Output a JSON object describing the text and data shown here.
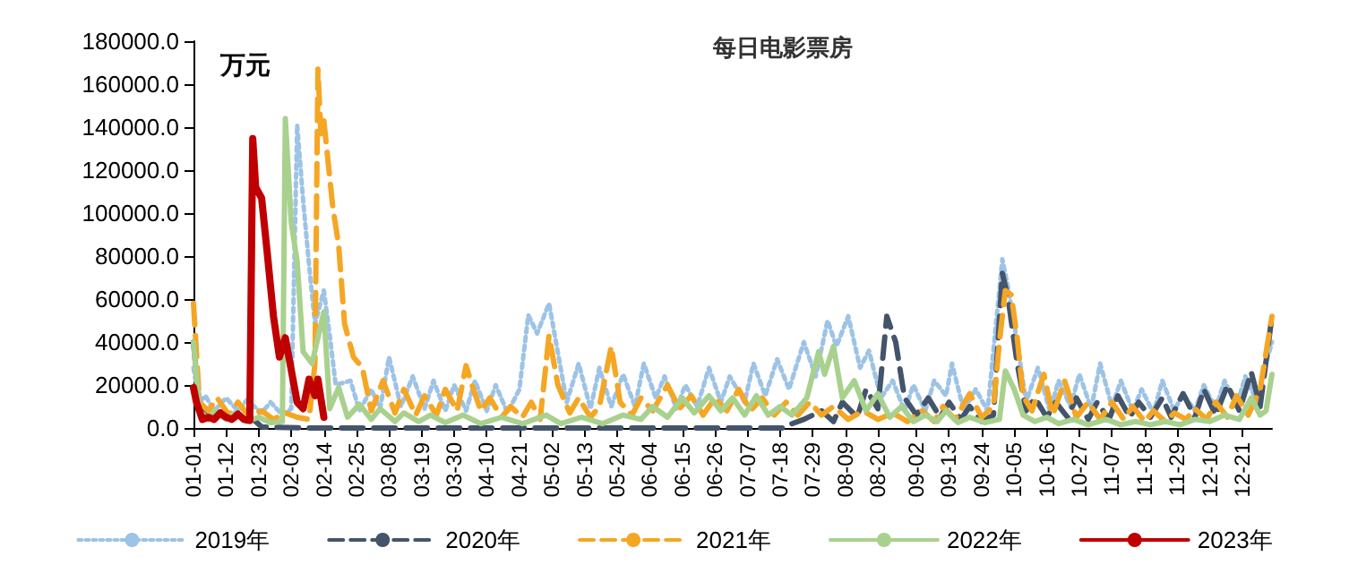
{
  "chart_data": {
    "type": "line",
    "title": "每日电影票房",
    "ylabel": "万元",
    "xlim": [
      "--01-01",
      "--12-31"
    ],
    "xticks": [
      {
        "value": "--01-01",
        "label": "01-01"
      },
      {
        "value": "--01-12",
        "label": "01-12"
      },
      {
        "value": "--01-23",
        "label": "01-23"
      },
      {
        "value": "--02-03",
        "label": "02-03"
      },
      {
        "value": "--02-14",
        "label": "02-14"
      },
      {
        "value": "--02-25",
        "label": "02-25"
      },
      {
        "value": "--03-08",
        "label": "03-08"
      },
      {
        "value": "--03-19",
        "label": "03-19"
      },
      {
        "value": "--03-30",
        "label": "03-30"
      },
      {
        "value": "--04-10",
        "label": "04-10"
      },
      {
        "value": "--04-21",
        "label": "04-21"
      },
      {
        "value": "--05-02",
        "label": "05-02"
      },
      {
        "value": "--05-13",
        "label": "05-13"
      },
      {
        "value": "--05-24",
        "label": "05-24"
      },
      {
        "value": "--06-04",
        "label": "06-04"
      },
      {
        "value": "--06-15",
        "label": "06-15"
      },
      {
        "value": "--06-26",
        "label": "06-26"
      },
      {
        "value": "--07-07",
        "label": "07-07"
      },
      {
        "value": "--07-18",
        "label": "07-18"
      },
      {
        "value": "--07-29",
        "label": "07-29"
      },
      {
        "value": "--08-09",
        "label": "08-09"
      },
      {
        "value": "--08-20",
        "label": "08-20"
      },
      {
        "value": "--09-02",
        "label": "09-02"
      },
      {
        "value": "--09-13",
        "label": "09-13"
      },
      {
        "value": "--09-24",
        "label": "09-24"
      },
      {
        "value": "--10-05",
        "label": "10-05"
      },
      {
        "value": "--10-16",
        "label": "10-16"
      },
      {
        "value": "--10-27",
        "label": "10-27"
      },
      {
        "value": "--11-07",
        "label": "11-07"
      },
      {
        "value": "--11-18",
        "label": "11-18"
      },
      {
        "value": "--11-29",
        "label": "11-29"
      },
      {
        "value": "--12-10",
        "label": "12-10"
      },
      {
        "value": "--12-21",
        "label": "12-21"
      }
    ],
    "ylim": [
      0,
      180000
    ],
    "yticks": [
      {
        "value": 0,
        "label": "0.0"
      },
      {
        "value": 20000,
        "label": "20000.0"
      },
      {
        "value": 40000,
        "label": "40000.0"
      },
      {
        "value": 60000,
        "label": "60000.0"
      },
      {
        "value": 80000,
        "label": "80000.0"
      },
      {
        "value": 100000,
        "label": "100000.0"
      },
      {
        "value": 120000,
        "label": "120000.0"
      },
      {
        "value": 140000,
        "label": "140000.0"
      },
      {
        "value": 160000,
        "label": "160000.0"
      },
      {
        "value": 180000,
        "label": "180000.0"
      }
    ],
    "grid": false,
    "legend": "bottom",
    "marker": "none",
    "series": [
      {
        "name": "2019年",
        "color": "#9dc3e6",
        "line_style": "dotted",
        "x": [
          "--01-01",
          "--01-03",
          "--01-05",
          "--01-08",
          "--01-12",
          "--01-16",
          "--01-19",
          "--01-24",
          "--01-27",
          "--01-31",
          "--02-03",
          "--02-05",
          "--02-07",
          "--02-09",
          "--02-11",
          "--02-14",
          "--02-16",
          "--02-18",
          "--02-23",
          "--02-26",
          "--03-02",
          "--03-05",
          "--03-08",
          "--03-12",
          "--03-16",
          "--03-20",
          "--03-23",
          "--03-27",
          "--03-30",
          "--04-03",
          "--04-06",
          "--04-10",
          "--04-13",
          "--04-17",
          "--04-21",
          "--04-24",
          "--04-27",
          "--05-01",
          "--05-04",
          "--05-07",
          "--05-11",
          "--05-15",
          "--05-18",
          "--05-22",
          "--05-26",
          "--05-30",
          "--06-02",
          "--06-06",
          "--06-09",
          "--06-13",
          "--06-16",
          "--06-20",
          "--06-24",
          "--06-28",
          "--07-01",
          "--07-06",
          "--07-09",
          "--07-13",
          "--07-17",
          "--07-21",
          "--07-26",
          "--07-30",
          "--08-03",
          "--08-06",
          "--08-10",
          "--08-14",
          "--08-17",
          "--08-21",
          "--08-25",
          "--08-29",
          "--09-01",
          "--09-05",
          "--09-08",
          "--09-12",
          "--09-14",
          "--09-18",
          "--09-22",
          "--09-26",
          "--10-01",
          "--10-03",
          "--10-06",
          "--10-09",
          "--10-13",
          "--10-17",
          "--10-20",
          "--10-24",
          "--10-27",
          "--10-31",
          "--11-03",
          "--11-07",
          "--11-10",
          "--11-14",
          "--11-17",
          "--11-21",
          "--11-24",
          "--11-28",
          "--12-01",
          "--12-05",
          "--12-08",
          "--12-12",
          "--12-15",
          "--12-19",
          "--12-22",
          "--12-26",
          "--12-29",
          "--12-31"
        ],
        "values": [
          28000,
          12000,
          15000,
          8000,
          14000,
          8000,
          13000,
          7000,
          12000,
          6000,
          9000,
          141000,
          106000,
          76000,
          48500,
          64000,
          43000,
          20000,
          22000,
          8000,
          18000,
          9000,
          33000,
          10000,
          24000,
          9000,
          22000,
          8000,
          20000,
          8000,
          22000,
          8000,
          20000,
          7000,
          18000,
          52500,
          44000,
          58000,
          35000,
          12000,
          30000,
          9000,
          28000,
          10000,
          25000,
          10000,
          30000,
          14000,
          24000,
          9000,
          20000,
          10000,
          28000,
          12000,
          24000,
          12000,
          30000,
          15000,
          32000,
          18000,
          40000,
          24000,
          50000,
          38000,
          52000,
          28000,
          36000,
          14000,
          22000,
          8000,
          20000,
          8000,
          22000,
          15000,
          30000,
          8000,
          18000,
          8000,
          78500,
          65000,
          40000,
          12000,
          28000,
          8000,
          22000,
          10000,
          25000,
          9000,
          30000,
          10000,
          22000,
          8000,
          18000,
          7000,
          22000,
          8000,
          16000,
          8000,
          20000,
          9000,
          22000,
          10000,
          24000,
          12000,
          30000,
          40000
        ]
      },
      {
        "name": "2020年",
        "color": "#44546a",
        "line_style": "dashed",
        "x": [
          "--01-01",
          "--01-03",
          "--01-06",
          "--01-10",
          "--01-14",
          "--01-18",
          "--01-22",
          "--01-24",
          "--02-10",
          "--03-20",
          "--05-01",
          "--06-15",
          "--07-19",
          "--07-22",
          "--07-26",
          "--08-01",
          "--08-05",
          "--08-08",
          "--08-13",
          "--08-16",
          "--08-20",
          "--08-23",
          "--08-26",
          "--08-29",
          "--09-02",
          "--09-06",
          "--09-10",
          "--09-13",
          "--09-17",
          "--09-20",
          "--09-24",
          "--09-28",
          "--10-01",
          "--10-03",
          "--10-06",
          "--10-09",
          "--10-12",
          "--10-16",
          "--10-19",
          "--10-23",
          "--10-26",
          "--10-30",
          "--11-02",
          "--11-06",
          "--11-09",
          "--11-13",
          "--11-16",
          "--11-20",
          "--11-24",
          "--11-27",
          "--12-01",
          "--12-05",
          "--12-08",
          "--12-12",
          "--12-16",
          "--12-20",
          "--12-24",
          "--12-27",
          "--12-31"
        ],
        "values": [
          40000,
          10000,
          4000,
          8000,
          4000,
          7000,
          3000,
          500,
          0,
          0,
          0,
          0,
          0,
          2000,
          4000,
          8000,
          3000,
          12000,
          5000,
          18000,
          9000,
          52000,
          40000,
          14000,
          6000,
          14000,
          5000,
          12000,
          4000,
          10000,
          3000,
          6000,
          72000,
          60000,
          30000,
          8000,
          14000,
          5000,
          12000,
          5000,
          14000,
          4000,
          12000,
          4000,
          15000,
          5000,
          12000,
          5000,
          14000,
          5000,
          16000,
          5000,
          18000,
          6000,
          20000,
          8000,
          26000,
          10000,
          52000
        ]
      },
      {
        "name": "2021年",
        "color": "#f5a623",
        "line_style": "dashed",
        "x": [
          "--01-01",
          "--01-03",
          "--01-06",
          "--01-09",
          "--01-13",
          "--01-16",
          "--01-20",
          "--01-24",
          "--01-28",
          "--02-01",
          "--02-05",
          "--02-09",
          "--02-11",
          "--02-12",
          "--02-13",
          "--02-14",
          "--02-17",
          "--02-19",
          "--02-21",
          "--02-24",
          "--02-27",
          "--03-02",
          "--03-06",
          "--03-10",
          "--03-13",
          "--03-17",
          "--03-20",
          "--03-24",
          "--03-27",
          "--03-31",
          "--04-03",
          "--04-05",
          "--04-08",
          "--04-11",
          "--04-15",
          "--04-18",
          "--04-22",
          "--04-25",
          "--04-28",
          "--05-01",
          "--05-04",
          "--05-08",
          "--05-11",
          "--05-15",
          "--05-18",
          "--05-22",
          "--05-25",
          "--05-29",
          "--06-01",
          "--06-05",
          "--06-10",
          "--06-14",
          "--06-18",
          "--06-22",
          "--06-26",
          "--06-30",
          "--07-04",
          "--07-08",
          "--07-12",
          "--07-16",
          "--07-20",
          "--07-24",
          "--07-28",
          "--08-01",
          "--08-05",
          "--08-10",
          "--08-15",
          "--08-20",
          "--08-25",
          "--08-30",
          "--09-04",
          "--09-08",
          "--09-11",
          "--09-15",
          "--09-20",
          "--09-24",
          "--09-28",
          "--09-30",
          "--10-02",
          "--10-04",
          "--10-06",
          "--10-08",
          "--10-11",
          "--10-15",
          "--10-18",
          "--10-22",
          "--10-26",
          "--10-30",
          "--11-03",
          "--11-07",
          "--11-11",
          "--11-14",
          "--11-18",
          "--11-21",
          "--11-25",
          "--11-28",
          "--12-02",
          "--12-05",
          "--12-09",
          "--12-12",
          "--12-16",
          "--12-19",
          "--12-23",
          "--12-27",
          "--12-31"
        ],
        "values": [
          58000,
          12000,
          8000,
          14000,
          6000,
          12000,
          5000,
          8000,
          4000,
          7000,
          5000,
          4000,
          30000,
          167000,
          137000,
          143000,
          103000,
          85000,
          48500,
          33000,
          28000,
          8000,
          22000,
          7000,
          18000,
          6000,
          15000,
          6000,
          18000,
          8000,
          29000,
          20000,
          8000,
          14000,
          5000,
          10000,
          5000,
          12000,
          4000,
          43000,
          20000,
          7000,
          14000,
          5000,
          10000,
          38000,
          12000,
          6000,
          14000,
          8000,
          20000,
          9000,
          15000,
          6000,
          14000,
          8000,
          18000,
          8000,
          14000,
          6000,
          12000,
          6000,
          12000,
          6000,
          10000,
          4000,
          8000,
          4000,
          7000,
          3000,
          8000,
          3000,
          10000,
          4000,
          16000,
          5000,
          10000,
          40000,
          64000,
          62000,
          42000,
          15000,
          8000,
          25000,
          6000,
          22000,
          5000,
          12000,
          4000,
          12000,
          4000,
          10000,
          3000,
          8000,
          3000,
          7000,
          4000,
          9000,
          4000,
          12000,
          5000,
          15000,
          6000,
          18000,
          52000
        ]
      },
      {
        "name": "2022年",
        "color": "#a9d18e",
        "line_style": "solid",
        "x": [
          "--01-01",
          "--01-03",
          "--01-06",
          "--01-08",
          "--01-12",
          "--01-15",
          "--01-19",
          "--01-23",
          "--01-27",
          "--01-31",
          "--02-01",
          "--02-03",
          "--02-05",
          "--02-07",
          "--02-10",
          "--02-14",
          "--02-16",
          "--02-19",
          "--02-22",
          "--02-26",
          "--03-02",
          "--03-05",
          "--03-10",
          "--03-13",
          "--03-18",
          "--03-22",
          "--03-27",
          "--04-02",
          "--04-08",
          "--04-15",
          "--04-22",
          "--04-30",
          "--05-05",
          "--05-12",
          "--05-19",
          "--05-26",
          "--06-01",
          "--06-05",
          "--06-10",
          "--06-15",
          "--06-19",
          "--06-24",
          "--06-28",
          "--07-02",
          "--07-06",
          "--07-10",
          "--07-14",
          "--07-18",
          "--07-22",
          "--07-27",
          "--07-31",
          "--08-02",
          "--08-05",
          "--08-08",
          "--08-12",
          "--08-16",
          "--08-20",
          "--08-24",
          "--08-28",
          "--09-01",
          "--09-05",
          "--09-09",
          "--09-12",
          "--09-16",
          "--09-20",
          "--09-25",
          "--09-30",
          "--10-02",
          "--10-05",
          "--10-08",
          "--10-12",
          "--10-16",
          "--10-20",
          "--10-25",
          "--10-30",
          "--11-05",
          "--11-10",
          "--11-15",
          "--11-20",
          "--11-25",
          "--11-30",
          "--12-05",
          "--12-10",
          "--12-15",
          "--12-20",
          "--12-24",
          "--12-27",
          "--12-29",
          "--12-31"
        ],
        "values": [
          40000,
          8000,
          4000,
          8000,
          4000,
          7000,
          3000,
          5000,
          2500,
          3000,
          144000,
          95500,
          77500,
          35500,
          30000,
          54000,
          9000,
          18800,
          5000,
          11000,
          4000,
          9000,
          3000,
          7000,
          3000,
          6000,
          2500,
          6000,
          2000,
          5000,
          2000,
          6000,
          2000,
          5000,
          2000,
          6000,
          4000,
          10000,
          5000,
          14000,
          7000,
          15000,
          8000,
          14000,
          6000,
          15000,
          6000,
          10000,
          6000,
          14000,
          35500,
          25000,
          38000,
          14000,
          22000,
          8000,
          16000,
          5000,
          10000,
          3000,
          6000,
          3000,
          8000,
          2500,
          5000,
          2500,
          4000,
          26600,
          18000,
          6000,
          3000,
          5000,
          2000,
          4000,
          1500,
          4000,
          1500,
          3000,
          1500,
          3000,
          1500,
          4000,
          3000,
          6000,
          4000,
          14000,
          6000,
          8000,
          25000
        ]
      },
      {
        "name": "2023年",
        "color": "#c00000",
        "line_style": "solid",
        "x": [
          "--01-01",
          "--01-02",
          "--01-04",
          "--01-06",
          "--01-08",
          "--01-10",
          "--01-12",
          "--01-14",
          "--01-16",
          "--01-18",
          "--01-20",
          "--01-21",
          "--01-22",
          "--01-24",
          "--01-26",
          "--01-28",
          "--01-30",
          "--02-01",
          "--02-03",
          "--02-05",
          "--02-07",
          "--02-09",
          "--02-11",
          "--02-12",
          "--02-14"
        ],
        "values": [
          18800,
          12000,
          4000,
          5000,
          4000,
          7000,
          5000,
          4000,
          6500,
          4000,
          3500,
          134700,
          112000,
          107000,
          80000,
          52000,
          33000,
          42000,
          27000,
          12000,
          9000,
          22700,
          15000,
          22700,
          5000
        ]
      }
    ]
  }
}
